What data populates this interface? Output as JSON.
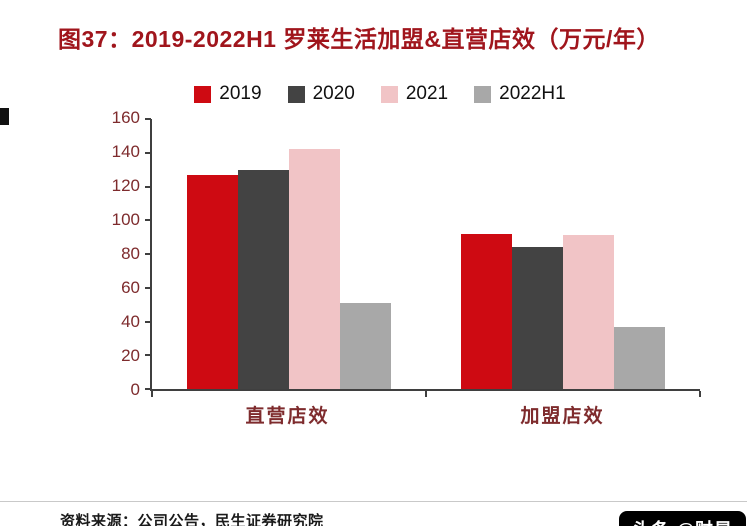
{
  "title": "图37：2019-2022H1 罗莱生活加盟&直营店效（万元/年）",
  "source": "资料来源：公司公告，民生证券研究院",
  "watermark": "头条 @财是",
  "colors": {
    "title_color": "#A0151C",
    "axis_label_color": "#7E2B2D",
    "axis_line_color": "#3F3F3F",
    "source_color": "#1A1A1A",
    "divider_color": "#C9C9C9",
    "watermark_bg": "#000000",
    "watermark_text": "#FFFFFF"
  },
  "chart_data": {
    "type": "bar",
    "categories": [
      "直营店效",
      "加盟店效"
    ],
    "series": [
      {
        "name": "2019",
        "color": "#CE0A12",
        "values": [
          127,
          92
        ]
      },
      {
        "name": "2020",
        "color": "#434343",
        "values": [
          130,
          84
        ]
      },
      {
        "name": "2021",
        "color": "#F1C4C6",
        "values": [
          142,
          91
        ]
      },
      {
        "name": "2022H1",
        "color": "#A8A8A8",
        "values": [
          51,
          37
        ]
      }
    ],
    "ylim": [
      0,
      160
    ],
    "yticks": [
      0,
      20,
      40,
      60,
      80,
      100,
      120,
      140,
      160
    ],
    "grid": false,
    "legend_position": "top"
  }
}
